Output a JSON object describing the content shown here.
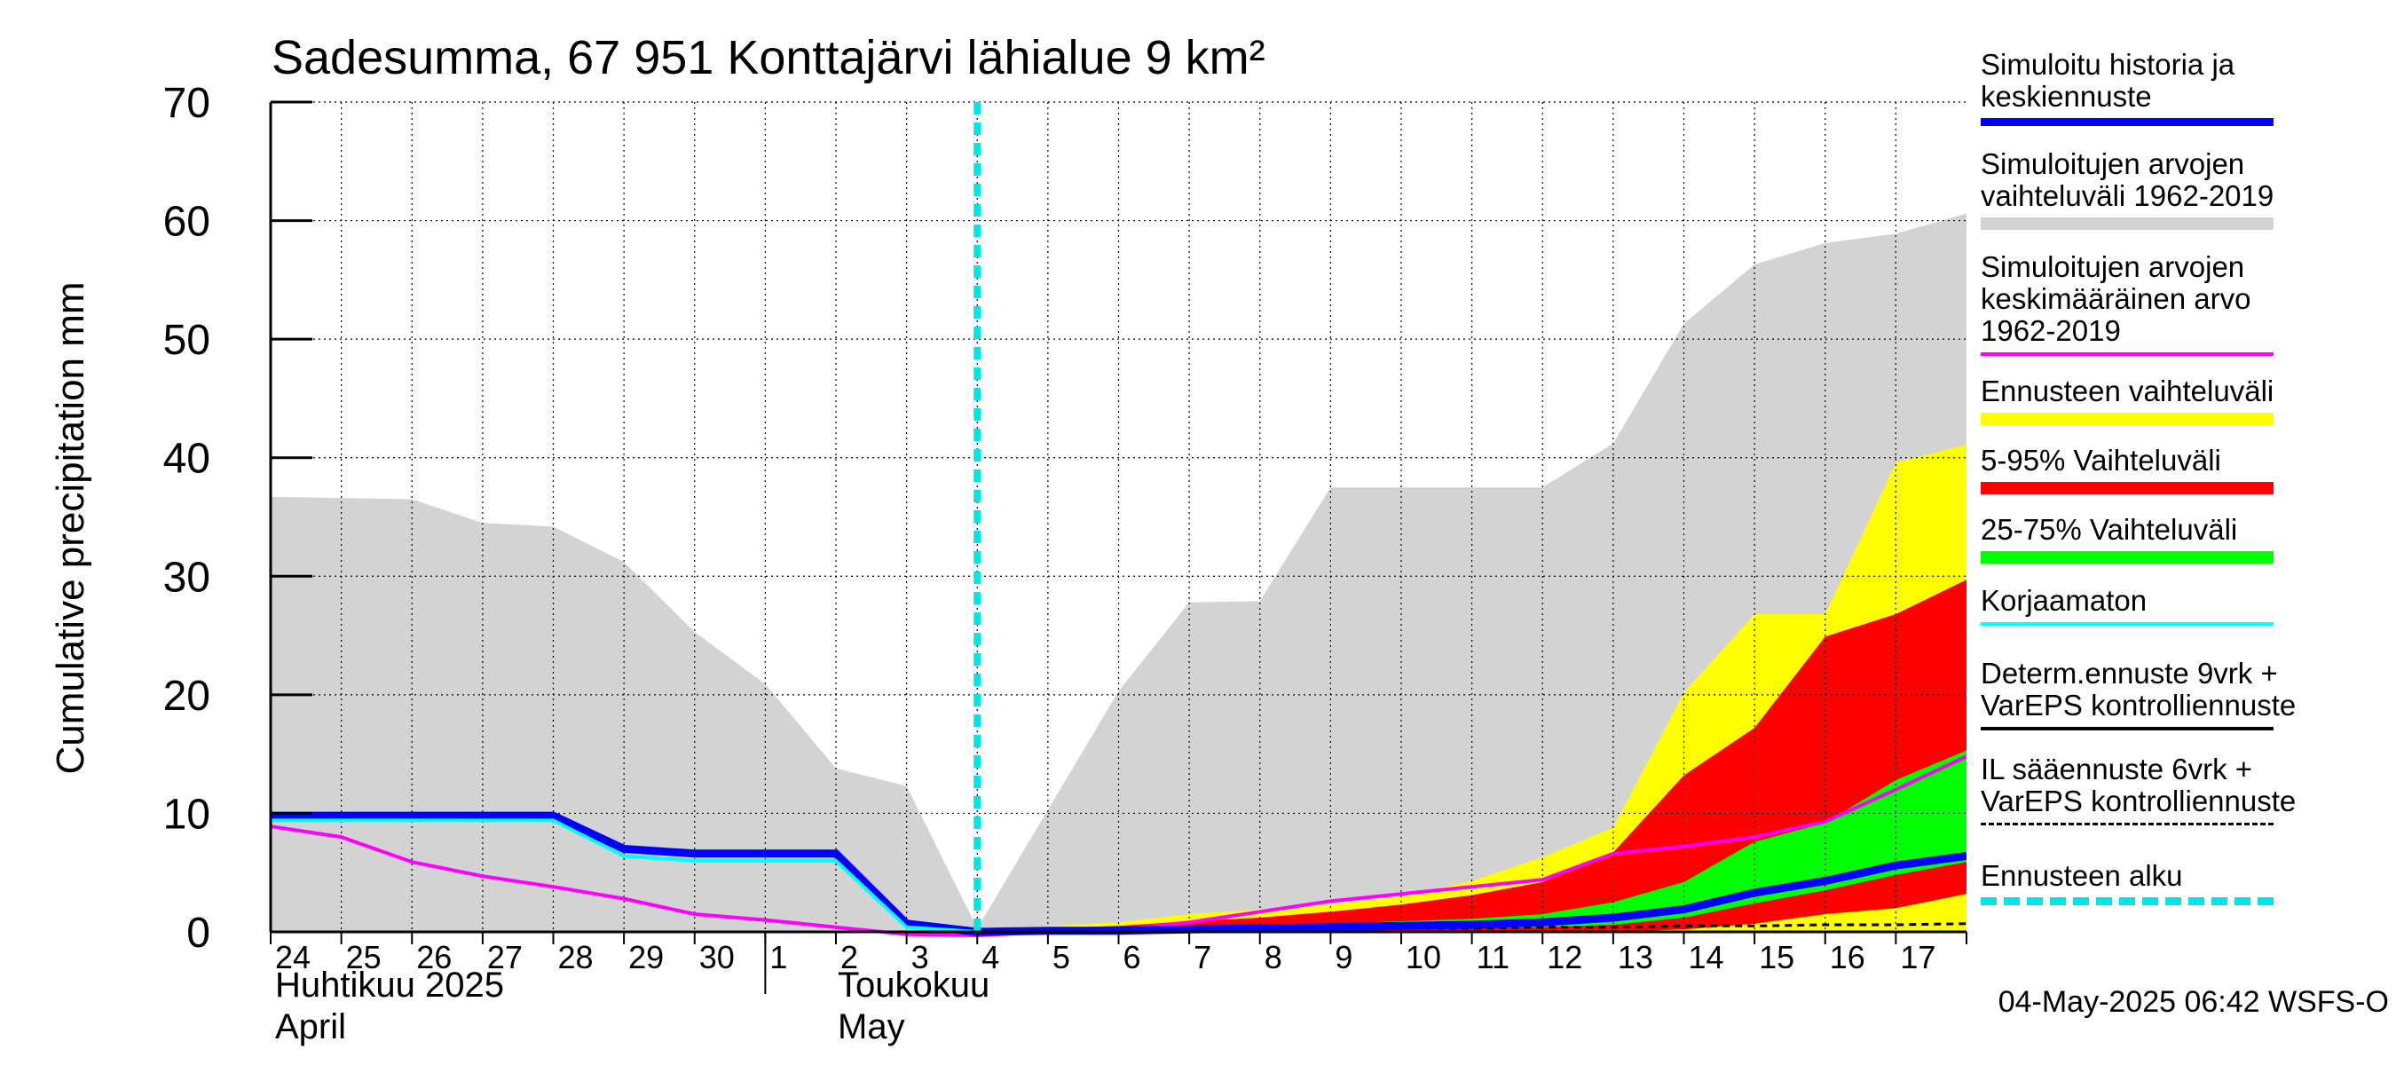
{
  "title": "Sadesumma, 67 951 Konttajärvi lähialue 9 km²",
  "ylabel": "Cumulative precipitation   mm",
  "footer": "04-May-2025 06:42 WSFS-O",
  "months": {
    "april_fi": "Huhtikuu  2025",
    "april_en": "April",
    "may_fi": "Toukokuu",
    "may_en": "May"
  },
  "legend": [
    {
      "label": "Simuloitu historia ja\nkeskiennuste",
      "color": "#0000ff",
      "style": "thick"
    },
    {
      "label": "Simuloitujen arvojen\nvaihteluväli 1962-2019",
      "color": "#d3d3d3",
      "style": "band"
    },
    {
      "label": "Simuloitujen arvojen\nkeskimääräinen arvo\n   1962-2019",
      "color": "#ff00ff",
      "style": "line"
    },
    {
      "label": "Ennusteen vaihteluväli",
      "color": "#ffff00",
      "style": "band"
    },
    {
      "label": "5-95% Vaihteluväli",
      "color": "#ff0000",
      "style": "band"
    },
    {
      "label": "25-75% Vaihteluväli",
      "color": "#00ff00",
      "style": "band"
    },
    {
      "label": "Korjaamaton",
      "color": "#00ffff",
      "style": "line"
    },
    {
      "label": "Determ.ennuste 9vrk +\nVarEPS kontrolliennuste",
      "color": "#000000",
      "style": "line"
    },
    {
      "label": "IL sääennuste 6vrk  +\n  VarEPS kontrolliennuste",
      "color": "#000000",
      "style": "dashed"
    },
    {
      "label": "Ennusteen alku",
      "color": "#00e5e5",
      "style": "thickdash"
    }
  ],
  "chart_data": {
    "type": "area",
    "ylim": [
      0,
      70
    ],
    "yticks": [
      0,
      10,
      20,
      30,
      40,
      50,
      60,
      70
    ],
    "xlim": [
      0,
      24
    ],
    "x_tick_labels": [
      {
        "x": 0,
        "label": "24"
      },
      {
        "x": 1,
        "label": "25"
      },
      {
        "x": 2,
        "label": "26"
      },
      {
        "x": 3,
        "label": "27"
      },
      {
        "x": 4,
        "label": "28"
      },
      {
        "x": 5,
        "label": "29"
      },
      {
        "x": 6,
        "label": "30"
      },
      {
        "x": 7,
        "label": "1"
      },
      {
        "x": 8,
        "label": "2"
      },
      {
        "x": 9,
        "label": "3"
      },
      {
        "x": 10,
        "label": "4"
      },
      {
        "x": 11,
        "label": "5"
      },
      {
        "x": 12,
        "label": "6"
      },
      {
        "x": 13,
        "label": "7"
      },
      {
        "x": 14,
        "label": "8"
      },
      {
        "x": 15,
        "label": "9"
      },
      {
        "x": 16,
        "label": "10"
      },
      {
        "x": 17,
        "label": "11"
      },
      {
        "x": 18,
        "label": "12"
      },
      {
        "x": 19,
        "label": "13"
      },
      {
        "x": 20,
        "label": "14"
      },
      {
        "x": 21,
        "label": "15"
      },
      {
        "x": 22,
        "label": "16"
      },
      {
        "x": 23,
        "label": "17"
      }
    ],
    "month_boundary_x": 7,
    "forecast_start_x": 10,
    "grid": true,
    "history_range": {
      "x": [
        0,
        1,
        2,
        3,
        4,
        5,
        6,
        7,
        8,
        9,
        10,
        11,
        12,
        13,
        14,
        15,
        16,
        17,
        18,
        19,
        20,
        21,
        22,
        23,
        24
      ],
      "low": [
        0,
        0,
        0,
        0,
        0,
        0,
        0,
        0,
        0,
        0,
        0,
        0,
        0,
        0,
        0,
        0,
        0,
        0,
        0,
        0,
        0,
        0,
        0,
        0,
        0
      ],
      "high": [
        36.7,
        36.6,
        36.5,
        34.5,
        34.2,
        31.2,
        25.3,
        20.9,
        13.8,
        12.3,
        0.3,
        10.3,
        20.3,
        27.8,
        27.9,
        37.5,
        37.5,
        37.5,
        37.5,
        41.2,
        51.3,
        56.3,
        58.1,
        58.9,
        60.6
      ]
    },
    "mean_1962_2019": {
      "x": [
        0,
        1,
        2,
        3,
        4,
        5,
        6,
        7,
        8,
        9,
        10,
        11,
        12,
        13,
        14,
        15,
        16,
        17,
        18,
        19,
        20,
        21,
        22,
        23,
        24
      ],
      "y": [
        8.9,
        8.0,
        5.9,
        4.7,
        3.8,
        2.8,
        1.5,
        1.0,
        0.4,
        -0.2,
        -0.3,
        0.0,
        0.2,
        0.8,
        1.7,
        2.6,
        3.2,
        3.8,
        4.4,
        6.6,
        7.2,
        8.0,
        9.3,
        12.0,
        14.8
      ]
    },
    "forecast_range": {
      "x": [
        10,
        11,
        12,
        13,
        14,
        15,
        16,
        17,
        18,
        19,
        20,
        21,
        22,
        23,
        24
      ],
      "low": [
        0,
        0,
        0,
        0,
        0,
        0,
        0,
        0,
        0,
        0,
        0,
        0,
        0,
        0,
        0
      ],
      "high": [
        0.2,
        0.5,
        0.8,
        1.5,
        1.9,
        2.3,
        3.0,
        4.3,
        6.3,
        8.8,
        20.2,
        26.8,
        26.8,
        39.6,
        41.1
      ]
    },
    "range_5_95": {
      "x": [
        10,
        11,
        12,
        13,
        14,
        15,
        16,
        17,
        18,
        19,
        20,
        21,
        22,
        23,
        24
      ],
      "low": [
        0,
        0,
        0,
        0,
        0,
        0,
        0,
        0,
        0,
        0,
        0.2,
        0.7,
        1.5,
        2.0,
        3.2
      ],
      "high": [
        0.2,
        0.3,
        0.5,
        0.9,
        1.2,
        1.7,
        2.3,
        3.1,
        4.2,
        6.7,
        13.2,
        17.2,
        24.9,
        26.8,
        29.7
      ]
    },
    "range_25_75": {
      "x": [
        10,
        11,
        12,
        13,
        14,
        15,
        16,
        17,
        18,
        19,
        20,
        21,
        22,
        23,
        24
      ],
      "low": [
        0,
        0,
        0,
        0,
        0.1,
        0.2,
        0.2,
        0.3,
        0.4,
        0.6,
        1.2,
        2.4,
        3.5,
        4.8,
        5.9
      ],
      "high": [
        0.1,
        0.2,
        0.3,
        0.4,
        0.5,
        0.7,
        0.9,
        1.1,
        1.5,
        2.5,
        4.2,
        7.6,
        9.2,
        12.8,
        15.3
      ]
    },
    "history_and_mean_forecast": {
      "x": [
        0,
        1,
        2,
        3,
        4,
        5,
        6,
        7,
        8,
        9,
        10,
        11,
        12,
        13,
        14,
        15,
        16,
        17,
        18,
        19,
        20,
        21,
        22,
        23,
        24
      ],
      "y": [
        9.8,
        9.8,
        9.8,
        9.8,
        9.8,
        7.0,
        6.6,
        6.6,
        6.6,
        0.7,
        0.0,
        0.1,
        0.1,
        0.2,
        0.3,
        0.4,
        0.5,
        0.6,
        0.8,
        1.2,
        1.9,
        3.3,
        4.3,
        5.6,
        6.4
      ]
    },
    "uncorrected": {
      "x": [
        0,
        1,
        2,
        3,
        4,
        5,
        6,
        7,
        8,
        9,
        10
      ],
      "y": [
        9.4,
        9.4,
        9.4,
        9.4,
        9.4,
        6.4,
        6.0,
        6.0,
        6.0,
        0.4,
        0.0
      ]
    },
    "deterministic": {
      "x": [
        10,
        11,
        12,
        13,
        14,
        15,
        16,
        17,
        18,
        19,
        20,
        21,
        22,
        23,
        24
      ],
      "y": [
        0.0,
        0.0,
        0.1,
        0.1,
        0.2,
        0.2,
        0.3,
        0.3,
        0.4,
        0.4,
        0.5,
        0.5,
        0.6,
        0.6,
        0.7
      ]
    }
  }
}
